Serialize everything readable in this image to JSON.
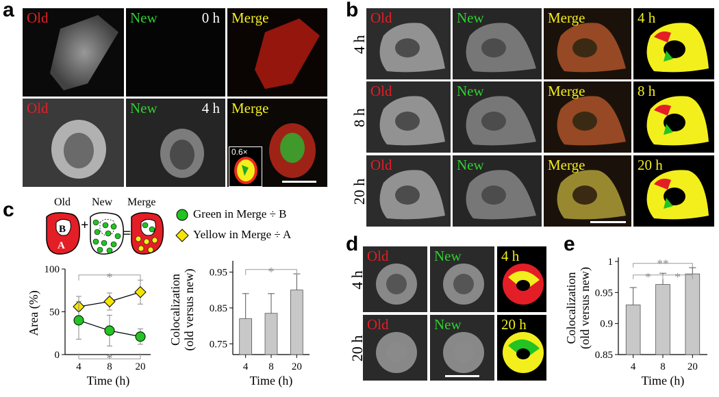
{
  "panels": {
    "a": {
      "letter": "a",
      "row1": {
        "old": "Old",
        "new": "New",
        "time": "0 h",
        "merge": "Merge"
      },
      "row2": {
        "old": "Old",
        "new": "New",
        "time": "4 h",
        "merge": "Merge",
        "inset": "0.6×"
      }
    },
    "b": {
      "letter": "b",
      "rows": [
        {
          "time": "4 h",
          "old": "Old",
          "new": "New",
          "merge": "Merge",
          "thresh": "4 h"
        },
        {
          "time": "8 h",
          "old": "Old",
          "new": "New",
          "merge": "Merge",
          "thresh": "8 h"
        },
        {
          "time": "20 h",
          "old": "Old",
          "new": "New",
          "merge": "Merge",
          "thresh": "20 h"
        }
      ]
    },
    "c": {
      "letter": "c",
      "schematic": {
        "old": "Old",
        "new": "New",
        "merge": "Merge",
        "b": "B",
        "a": "A",
        "plus": "+",
        "equals": "="
      },
      "legend": [
        {
          "marker": "green-circle",
          "text": "Green in Merge ÷ B",
          "color": "#22c322"
        },
        {
          "marker": "yellow-diamond",
          "text": "Yellow in Merge ÷ A",
          "color": "#f5e400"
        }
      ]
    },
    "d": {
      "letter": "d",
      "rows": [
        {
          "time": "4 h",
          "old": "Old",
          "new": "New",
          "thresh": "4 h"
        },
        {
          "time": "20 h",
          "old": "Old",
          "new": "New",
          "thresh": "20 h"
        }
      ]
    },
    "e": {
      "letter": "e"
    }
  },
  "colors": {
    "old_red": "#e41e26",
    "new_green": "#2fd12f",
    "merge_yellow": "#f3ef1c",
    "bar_gray": "#c8c8c8"
  },
  "chart_data": [
    {
      "id": "c-line",
      "type": "line",
      "xlabel": "Time (h)",
      "ylabel": "Area (%)",
      "x": [
        4,
        8,
        20
      ],
      "x_ticks": [
        "4",
        "8",
        "20"
      ],
      "y_ticks": [
        "0",
        "50",
        "100"
      ],
      "ylim": [
        0,
        100
      ],
      "series": [
        {
          "marker": "yellow-diamond",
          "values": [
            56,
            62,
            73
          ],
          "err": [
            12,
            10,
            14
          ]
        },
        {
          "marker": "green-circle",
          "values": [
            40,
            28,
            21
          ],
          "err": [
            22,
            18,
            9
          ]
        }
      ],
      "significance": [
        "*",
        "*"
      ]
    },
    {
      "id": "c-bar",
      "type": "bar",
      "xlabel": "Time (h)",
      "ylabel": "Colocalization (old versus new)",
      "ylabel_lines": [
        "Colocalization",
        "(old versus new)"
      ],
      "categories": [
        "4",
        "8",
        "20"
      ],
      "values": [
        0.82,
        0.835,
        0.9
      ],
      "err": [
        0.07,
        0.055,
        0.045
      ],
      "y_ticks": [
        "0.75",
        "0.85",
        "0.95"
      ],
      "ylim": [
        0.72,
        0.97
      ],
      "significance": [
        "*"
      ]
    },
    {
      "id": "e-bar",
      "type": "bar",
      "xlabel": "Time (h)",
      "ylabel": "Colocalization (old versus new)",
      "ylabel_lines": [
        "Colocalization",
        "(old versus new)"
      ],
      "categories": [
        "4",
        "8",
        "20"
      ],
      "values": [
        0.93,
        0.963,
        0.98
      ],
      "err": [
        0.028,
        0.018,
        0.01
      ],
      "y_ticks": [
        "0.85",
        "0.9",
        "0.95",
        "1"
      ],
      "ylim": [
        0.85,
        1.0
      ],
      "significance": [
        "**",
        "*",
        "*"
      ]
    }
  ]
}
